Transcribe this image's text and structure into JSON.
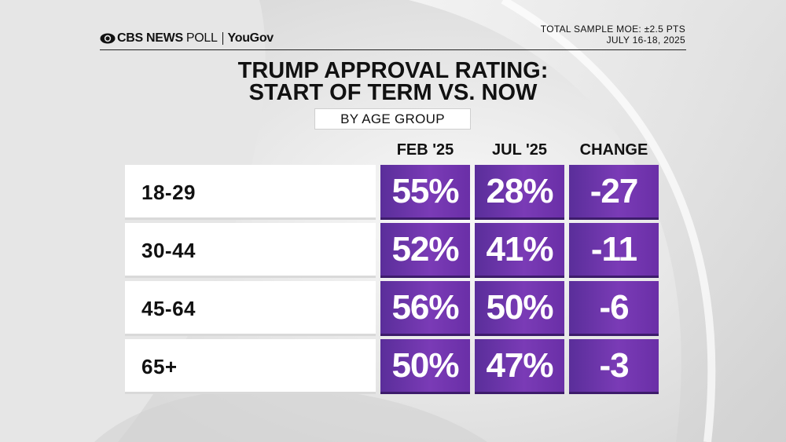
{
  "header": {
    "brand": "CBS NEWS",
    "poll_word": "POLL",
    "partner": "YouGov",
    "moe_line1": "TOTAL SAMPLE MOE: ±2.5 PTS",
    "moe_line2": "JULY 16-18, 2025"
  },
  "colors": {
    "purple": "#6f35ad",
    "background": "#e9e9e9",
    "text": "#111111"
  },
  "icons": {
    "logo": "cbs-eye-icon"
  },
  "chart_data": {
    "type": "table",
    "title_line1": "TRUMP APPROVAL RATING:",
    "title_line2": "START OF TERM VS. NOW",
    "subtitle": "BY AGE GROUP",
    "columns": [
      "FEB '25",
      "JUL '25",
      "CHANGE"
    ],
    "rows": [
      {
        "label": "18-29",
        "cells": [
          "55%",
          "28%",
          "-27"
        ]
      },
      {
        "label": "30-44",
        "cells": [
          "52%",
          "41%",
          "-11"
        ]
      },
      {
        "label": "45-64",
        "cells": [
          "56%",
          "50%",
          "-6"
        ]
      },
      {
        "label": "65+",
        "cells": [
          "50%",
          "47%",
          "-3"
        ]
      }
    ],
    "values": {
      "feb_25": [
        55,
        52,
        56,
        50
      ],
      "jul_25": [
        28,
        41,
        50,
        47
      ],
      "change": [
        -27,
        -11,
        -6,
        -3
      ]
    }
  }
}
